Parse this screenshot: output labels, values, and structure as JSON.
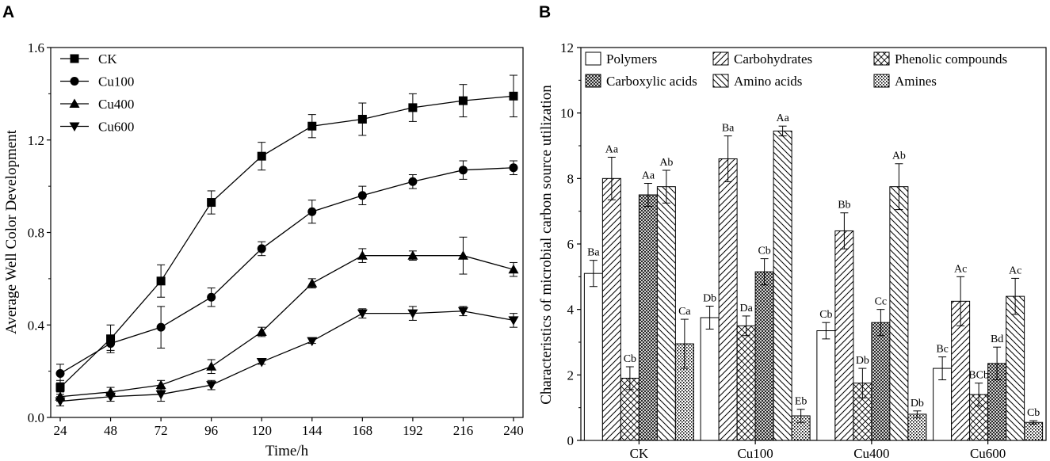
{
  "chart_data": [
    {
      "panel": "A",
      "type": "line",
      "title": "",
      "xlabel": "Time/h",
      "ylabel": "Average Well Color Development",
      "x": [
        24,
        48,
        72,
        96,
        120,
        144,
        168,
        192,
        216,
        240
      ],
      "xlim": [
        24,
        240
      ],
      "ylim": [
        0.0,
        1.6
      ],
      "yticks": [
        "0.0",
        "0.4",
        "0.8",
        "1.2",
        "1.6"
      ],
      "legend_position": "top-left",
      "series": [
        {
          "name": "CK",
          "marker": "square",
          "values": [
            0.13,
            0.34,
            0.59,
            0.93,
            1.13,
            1.26,
            1.29,
            1.34,
            1.37,
            1.39
          ],
          "errors": [
            0.03,
            0.06,
            0.07,
            0.05,
            0.06,
            0.05,
            0.07,
            0.06,
            0.07,
            0.09
          ]
        },
        {
          "name": "Cu100",
          "marker": "circle",
          "values": [
            0.19,
            0.32,
            0.39,
            0.52,
            0.73,
            0.89,
            0.96,
            1.02,
            1.07,
            1.08
          ],
          "errors": [
            0.04,
            0.03,
            0.09,
            0.04,
            0.03,
            0.05,
            0.04,
            0.03,
            0.04,
            0.03
          ]
        },
        {
          "name": "Cu400",
          "marker": "triangle-up",
          "values": [
            0.09,
            0.11,
            0.14,
            0.22,
            0.37,
            0.58,
            0.7,
            0.7,
            0.7,
            0.64
          ],
          "errors": [
            0.02,
            0.02,
            0.02,
            0.03,
            0.02,
            0.02,
            0.03,
            0.02,
            0.08,
            0.03
          ]
        },
        {
          "name": "Cu600",
          "marker": "triangle-down",
          "values": [
            0.07,
            0.09,
            0.1,
            0.14,
            0.24,
            0.33,
            0.45,
            0.45,
            0.46,
            0.42
          ],
          "errors": [
            0.02,
            0.02,
            0.03,
            0.02,
            0.01,
            0.01,
            0.02,
            0.03,
            0.02,
            0.03
          ]
        }
      ]
    },
    {
      "panel": "B",
      "type": "bar",
      "title": "",
      "xlabel": "",
      "ylabel": "Characteristics of microbial carbon source utilization",
      "categories": [
        "CK",
        "Cu100",
        "Cu400",
        "Cu600"
      ],
      "ylim": [
        0,
        12
      ],
      "yticks": [
        "0",
        "2",
        "4",
        "6",
        "8",
        "10",
        "12"
      ],
      "legend_position": "top",
      "series": [
        {
          "name": "Polymers",
          "pattern": "plain",
          "values": [
            5.1,
            3.75,
            3.35,
            2.2
          ],
          "errors": [
            0.4,
            0.35,
            0.25,
            0.35
          ],
          "labels": [
            "Ba",
            "Db",
            "Cb",
            "Bc"
          ]
        },
        {
          "name": "Carbohydrates",
          "pattern": "diagonal",
          "values": [
            8.0,
            8.6,
            6.4,
            4.25
          ],
          "errors": [
            0.65,
            0.7,
            0.55,
            0.75
          ],
          "labels": [
            "Aa",
            "Ba",
            "Bb",
            "Ac"
          ]
        },
        {
          "name": "Phenolic compounds",
          "pattern": "cross",
          "values": [
            1.9,
            3.5,
            1.75,
            1.4
          ],
          "errors": [
            0.35,
            0.3,
            0.45,
            0.35
          ],
          "labels": [
            "Cb",
            "Da",
            "Db",
            "BCb"
          ]
        },
        {
          "name": "Carboxylic acids",
          "pattern": "dense-cross",
          "values": [
            7.5,
            5.15,
            3.6,
            2.35
          ],
          "errors": [
            0.35,
            0.4,
            0.4,
            0.5
          ],
          "labels": [
            "Aa",
            "Cb",
            "Cc",
            "Bd"
          ]
        },
        {
          "name": "Amino acids",
          "pattern": "back-diagonal",
          "values": [
            7.75,
            9.45,
            7.75,
            4.4
          ],
          "errors": [
            0.5,
            0.15,
            0.7,
            0.55
          ],
          "labels": [
            "Ab",
            "Aa",
            "Ab",
            "Ac"
          ]
        },
        {
          "name": "Amines",
          "pattern": "dots",
          "values": [
            2.95,
            0.75,
            0.8,
            0.55
          ],
          "errors": [
            0.75,
            0.2,
            0.1,
            0.05
          ],
          "labels": [
            "Ca",
            "Eb",
            "Db",
            "Cb"
          ]
        }
      ]
    }
  ]
}
